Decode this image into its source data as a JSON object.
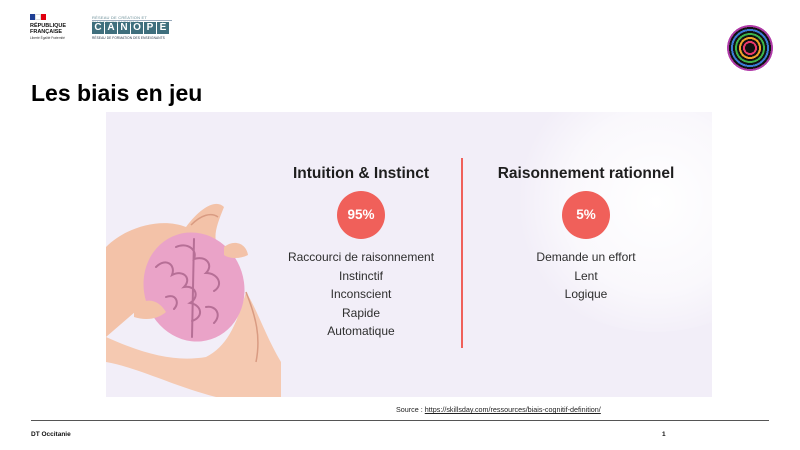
{
  "header": {
    "republique_name": "RÉPUBLIQUE FRANÇAISE",
    "republique_motto": "Liberté Égalité Fraternité",
    "canope_top": "RÉSEAU DE CRÉATION ET D'ACCOMPAGNEMENT",
    "canope_letters": [
      "C",
      "A",
      "N",
      "O",
      "P",
      "É"
    ],
    "canope_sub": "RÉSEAU DE FORMATION DES ENSEIGNANTS"
  },
  "slide": {
    "title": "Les biais en jeu"
  },
  "panel": {
    "left": {
      "title": "Intuition & Instinct",
      "percent": "95%",
      "items": [
        "Raccourci de raisonnement",
        "Instinctif",
        "Inconscient",
        "Rapide",
        "Automatique"
      ]
    },
    "right": {
      "title": "Raisonnement rationnel",
      "percent": "5%",
      "items": [
        "Demande un effort",
        "Lent",
        "Logique"
      ]
    }
  },
  "source": {
    "prefix": "Source : ",
    "url": "https://skillsday.com/ressources/biais-cognitif-definition/"
  },
  "footer": {
    "left": "DT Occitanie",
    "page": "1"
  },
  "colors": {
    "accent": "#f0605a",
    "panel_bg": "#f2eef8",
    "brain": "#eaa3c8",
    "skin": "#f3c2a8"
  }
}
